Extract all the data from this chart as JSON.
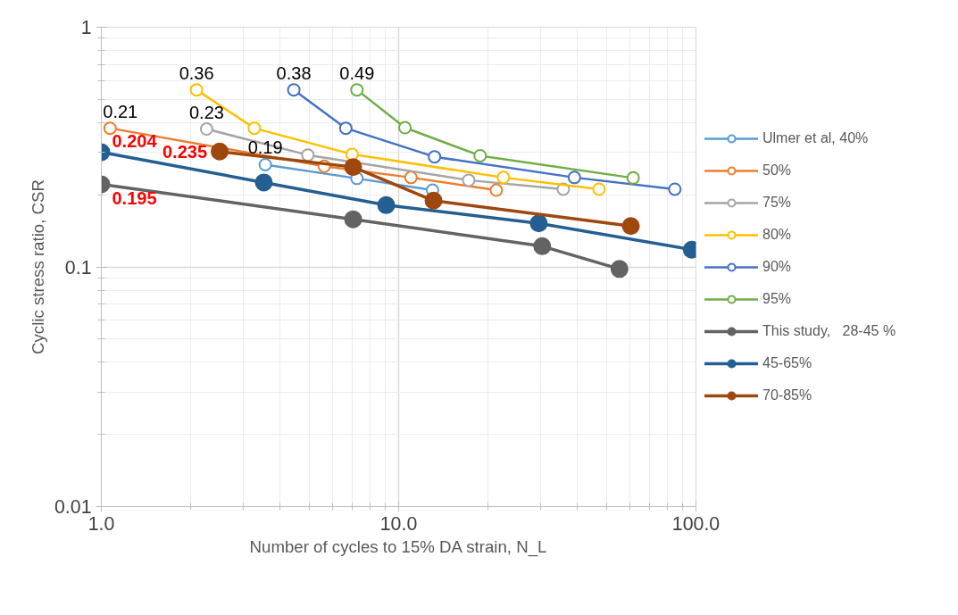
{
  "chart_data": {
    "type": "line",
    "xlabel": "Number of cycles to 15% DA strain, N_L",
    "ylabel": "Cyclic stress ratio, CSR",
    "log": "xy",
    "grid": true,
    "legend": "right",
    "marker": "circle",
    "line_style": "solid",
    "xlim": [
      1,
      100
    ],
    "xticks": [
      {
        "value": 1,
        "label": "1.0"
      },
      {
        "value": 10,
        "label": "10.0"
      },
      {
        "value": 100,
        "label": "100.0"
      }
    ],
    "ylim": [
      0.01,
      1
    ],
    "yticks": [
      0.01,
      0.1,
      1
    ],
    "series": [
      {
        "name": "Ulmer et al, 40%",
        "color": "#5b9bd5",
        "x": [
          3.56,
          7.24,
          13.0
        ],
        "values": [
          0.267,
          0.234,
          0.209
        ]
      },
      {
        "name": "50%",
        "color": "#ed7d31",
        "x": [
          1.07,
          5.62,
          11.0,
          21.3
        ],
        "values": [
          0.379,
          0.263,
          0.236,
          0.209
        ]
      },
      {
        "name": "75%",
        "color": "#a5a5a5",
        "x": [
          2.26,
          4.95,
          17.2,
          35.8
        ],
        "values": [
          0.376,
          0.293,
          0.23,
          0.211
        ]
      },
      {
        "name": "80%",
        "color": "#ffc000",
        "x": [
          2.09,
          3.27,
          6.97,
          22.5,
          47.2
        ],
        "values": [
          0.548,
          0.379,
          0.295,
          0.236,
          0.211
        ]
      },
      {
        "name": "90%",
        "color": "#4472c4",
        "x": [
          4.44,
          6.64,
          13.2,
          39.0,
          84.9
        ],
        "values": [
          0.548,
          0.379,
          0.288,
          0.236,
          0.211
        ]
      },
      {
        "name": "95%",
        "color": "#70ad47",
        "x": [
          7.24,
          10.5,
          18.8,
          61.5
        ],
        "values": [
          0.548,
          0.381,
          0.291,
          0.235
        ]
      },
      {
        "name": "This study,   28-45 %",
        "color": "#636363",
        "x": [
          1.0,
          7.03,
          30.4,
          55.3
        ],
        "values": [
          0.221,
          0.158,
          0.122,
          0.098
        ]
      },
      {
        "name": "45-65%",
        "color": "#255e91",
        "x": [
          1.0,
          3.52,
          9.08,
          29.6,
          96.8
        ],
        "values": [
          0.301,
          0.225,
          0.181,
          0.152,
          0.118
        ]
      },
      {
        "name": "70-85%",
        "color": "#9e480e",
        "x": [
          2.5,
          7.03,
          13.1,
          60.4
        ],
        "values": [
          0.303,
          0.261,
          0.189,
          0.148
        ]
      }
    ],
    "annotations": [
      {
        "text": "0.36",
        "x": 2.09,
        "y": 0.548
      },
      {
        "text": "0.38",
        "x": 4.44,
        "y": 0.548
      },
      {
        "text": "0.49",
        "x": 7.24,
        "y": 0.548
      },
      {
        "text": "0.21",
        "x": 1.07,
        "y": 0.379
      },
      {
        "text": "0.23",
        "x": 2.26,
        "y": 0.376
      },
      {
        "text": "0.19",
        "x": 3.56,
        "y": 0.267
      },
      {
        "text": "0.204",
        "x": 1.0,
        "y": 0.301
      },
      {
        "text": "0.195",
        "x": 1.0,
        "y": 0.221
      },
      {
        "text": "0.235",
        "x": 2.5,
        "y": 0.303
      }
    ]
  }
}
